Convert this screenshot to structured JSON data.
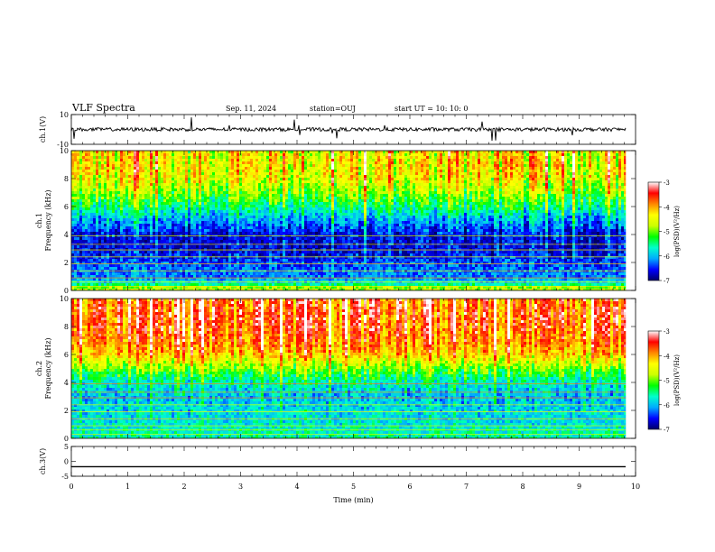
{
  "header": {
    "title": "VLF Spectra",
    "date": "Sep. 11, 2024",
    "station": "station=OUJ",
    "start": "start  UT =   10: 10: 0"
  },
  "chart_data": [
    {
      "type": "line",
      "panel": "ch1-waveform",
      "ylabel": "ch.1(V)",
      "ylim": [
        -10,
        10
      ],
      "yticks": [
        "10",
        "-10"
      ],
      "baseline": 0,
      "color": "#000000"
    },
    {
      "type": "heatmap",
      "panel": "ch1-spectrogram",
      "ylabel": "ch.1\nFrequency (kHz)",
      "ylabel_line1": "ch.1",
      "ylabel_line2": "Frequency (kHz)",
      "ylim": [
        0,
        10
      ],
      "yticks": [
        "0",
        "2",
        "4",
        "6",
        "8",
        "10"
      ],
      "intensity_profile": [
        {
          "f": 0.2,
          "v": 0.55
        },
        {
          "f": 0.5,
          "v": 0.3
        },
        {
          "f": 1.0,
          "v": 0.2
        },
        {
          "f": 2.0,
          "v": 0.15
        },
        {
          "f": 3.0,
          "v": 0.08
        },
        {
          "f": 4.0,
          "v": 0.1
        },
        {
          "f": 5.0,
          "v": 0.22
        },
        {
          "f": 6.0,
          "v": 0.38
        },
        {
          "f": 7.0,
          "v": 0.52
        },
        {
          "f": 8.0,
          "v": 0.62
        },
        {
          "f": 9.0,
          "v": 0.66
        },
        {
          "f": 10.0,
          "v": 0.64
        }
      ]
    },
    {
      "type": "heatmap",
      "panel": "ch2-spectrogram",
      "ylabel": "ch.2\nFrequency (kHz)",
      "ylabel_line1": "ch.2",
      "ylabel_line2": "Frequency (kHz)",
      "ylim": [
        0,
        10
      ],
      "yticks": [
        "0",
        "2",
        "4",
        "6",
        "8",
        "10"
      ],
      "intensity_profile": [
        {
          "f": 0.2,
          "v": 0.35
        },
        {
          "f": 1.0,
          "v": 0.3
        },
        {
          "f": 2.0,
          "v": 0.28
        },
        {
          "f": 3.0,
          "v": 0.25
        },
        {
          "f": 4.0,
          "v": 0.32
        },
        {
          "f": 5.0,
          "v": 0.5
        },
        {
          "f": 6.0,
          "v": 0.7
        },
        {
          "f": 7.0,
          "v": 0.78
        },
        {
          "f": 8.0,
          "v": 0.82
        },
        {
          "f": 9.0,
          "v": 0.82
        },
        {
          "f": 10.0,
          "v": 0.8
        }
      ]
    },
    {
      "type": "line",
      "panel": "ch3-waveform",
      "ylabel": "ch.3(V)",
      "ylim": [
        -5,
        5
      ],
      "yticks": [
        "5",
        "0",
        "-5"
      ],
      "baseline": -1.8,
      "color": "#000000"
    }
  ],
  "x_axis": {
    "label": "Time  (min)",
    "xlim": [
      0,
      10
    ],
    "ticks": [
      "0",
      "1",
      "2",
      "3",
      "4",
      "5",
      "6",
      "7",
      "8",
      "9",
      "10"
    ],
    "data_end": 9.83
  },
  "colorbar": {
    "label": "log(PSD)(V²/Hz)",
    "range": [
      -7,
      -3
    ],
    "ticks": [
      "-3",
      "-4",
      "-5",
      "-6",
      "-7"
    ],
    "stops": [
      "#000066",
      "#0000ff",
      "#00aaff",
      "#00ffcc",
      "#00ff00",
      "#ccff00",
      "#ffff00",
      "#ff8800",
      "#ff0000",
      "#ffffff"
    ]
  }
}
